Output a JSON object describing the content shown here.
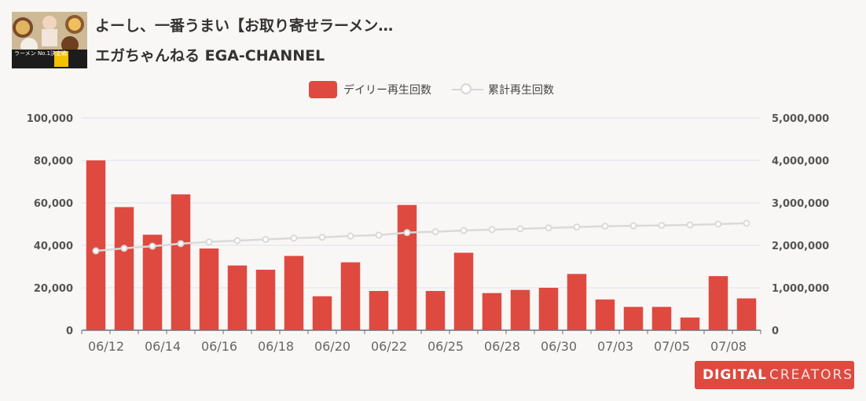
{
  "video": {
    "title": "よーし、一番うまい【お取り寄せラーメン…",
    "channel": "エガちゃんねる EGA-CHANNEL",
    "thumbnail_text": "ラーメン No.1決定戦"
  },
  "logo": {
    "bold": "DIGITAL",
    "light": "CREATORS"
  },
  "colors": {
    "bar": "#de4a40",
    "line": "#d9d9d9",
    "grid": "#dde3ef",
    "axis": "#6e7079",
    "brand": "#de4a40"
  },
  "chart_data": {
    "type": "bar",
    "legend": [
      "デイリー再生回数",
      "累計再生回数"
    ],
    "legend_position": "top-center",
    "grid": true,
    "x_tick_labels": [
      "06/12",
      "06/14",
      "06/16",
      "06/18",
      "06/20",
      "06/22",
      "06/25",
      "06/28",
      "06/30",
      "07/03",
      "07/05",
      "07/08"
    ],
    "y_left": {
      "ylim": [
        0,
        100000
      ],
      "ticks": [
        "0",
        "20,000",
        "40,000",
        "60,000",
        "80,000",
        "100,000"
      ]
    },
    "y_right": {
      "ylim": [
        0,
        5000000
      ],
      "ticks": [
        "0",
        "1,000,000",
        "2,000,000",
        "3,000,000",
        "4,000,000",
        "5,000,000"
      ]
    },
    "series": [
      {
        "name": "デイリー再生回数",
        "type": "bar",
        "axis": "left",
        "values": [
          80000,
          58000,
          45000,
          64000,
          38500,
          30500,
          28500,
          35000,
          16000,
          32000,
          18500,
          59000,
          18500,
          36500,
          17500,
          19000,
          20000,
          26500,
          14500,
          11000,
          11000,
          6000,
          25500,
          15000
        ]
      },
      {
        "name": "累計再生回数",
        "type": "line",
        "axis": "right",
        "values": [
          1870000,
          1930000,
          1980000,
          2040000,
          2080000,
          2110000,
          2140000,
          2170000,
          2190000,
          2220000,
          2240000,
          2300000,
          2320000,
          2350000,
          2370000,
          2390000,
          2410000,
          2430000,
          2450000,
          2460000,
          2470000,
          2480000,
          2500000,
          2520000
        ]
      }
    ]
  }
}
